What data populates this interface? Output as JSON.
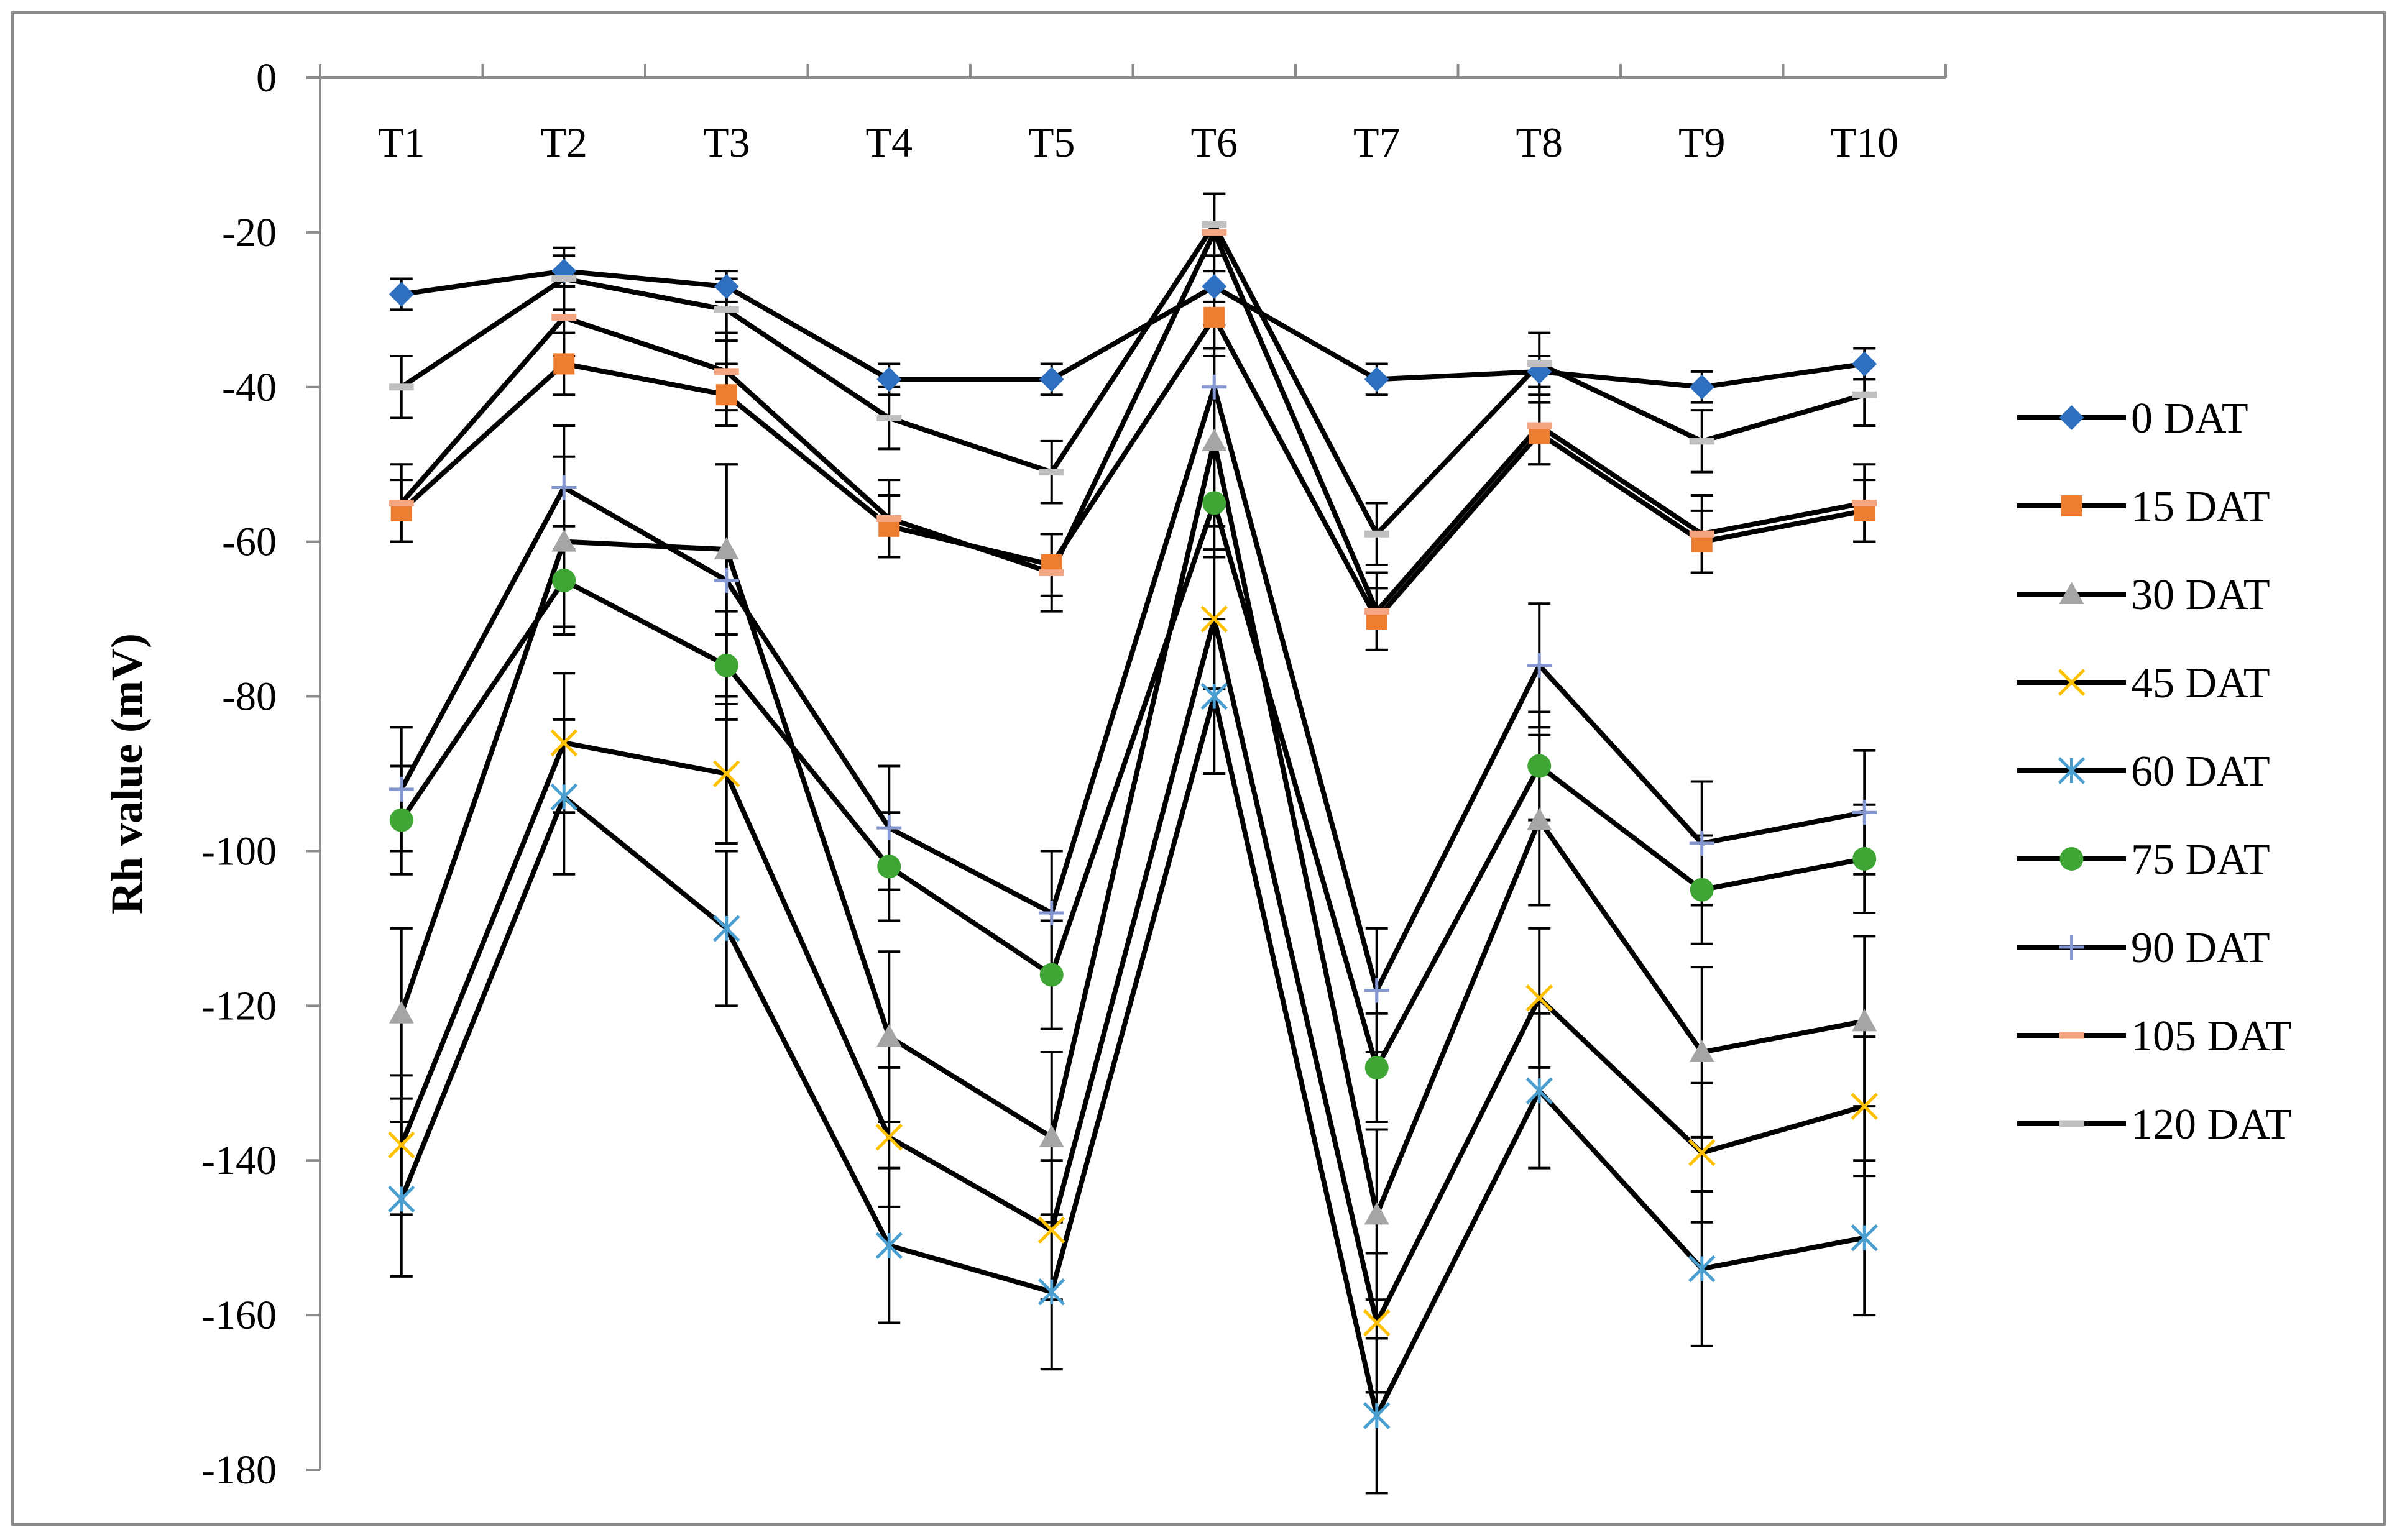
{
  "chart_data": {
    "type": "line",
    "title": "",
    "xlabel": "",
    "ylabel": "Rh value (mV)",
    "ylim": [
      -180,
      0
    ],
    "yticks": [
      0,
      -20,
      -40,
      -60,
      -80,
      -100,
      -120,
      -140,
      -160,
      -180
    ],
    "ytick_labels": [
      "0",
      "-20",
      "-40",
      "-60",
      "-80",
      "-100",
      "-120",
      "-140",
      "-160",
      "-180"
    ],
    "categories": [
      "T1",
      "T2",
      "T3",
      "T4",
      "T5",
      "T6",
      "T7",
      "T8",
      "T9",
      "T10"
    ],
    "legend_position": "right",
    "grid": false,
    "series": [
      {
        "name": "0 DAT",
        "marker": "diamond",
        "color": "#2E6FC0",
        "values": [
          -28,
          -25,
          -27,
          -39,
          -39,
          -27,
          -39,
          -38,
          -40,
          -37
        ],
        "errors": [
          2,
          2,
          2,
          2,
          2,
          2,
          2,
          2,
          2,
          2
        ]
      },
      {
        "name": "15 DAT",
        "marker": "square",
        "color": "#ED7D31",
        "values": [
          -56,
          -37,
          -41,
          -58,
          -63,
          -31,
          -70,
          -46,
          -60,
          -56
        ],
        "errors": [
          4,
          4,
          4,
          4,
          4,
          4,
          4,
          4,
          4,
          4
        ]
      },
      {
        "name": "30 DAT",
        "marker": "triangle",
        "color": "#A5A5A5",
        "values": [
          -121,
          -60,
          -61,
          -124,
          -137,
          -47,
          -147,
          -96,
          -126,
          -122
        ],
        "errors": [
          11,
          11,
          11,
          11,
          11,
          11,
          11,
          11,
          11,
          11
        ]
      },
      {
        "name": "45 DAT",
        "marker": "x",
        "color": "#FFC000",
        "values": [
          -138,
          -86,
          -90,
          -137,
          -149,
          -70,
          -161,
          -119,
          -139,
          -133
        ],
        "errors": [
          9,
          9,
          9,
          9,
          9,
          9,
          9,
          9,
          9,
          9
        ]
      },
      {
        "name": "60 DAT",
        "marker": "star",
        "color": "#4A9FD0",
        "values": [
          -145,
          -93,
          -110,
          -151,
          -157,
          -80,
          -173,
          -131,
          -154,
          -150
        ],
        "errors": [
          10,
          10,
          10,
          10,
          10,
          10,
          10,
          10,
          10,
          10
        ]
      },
      {
        "name": "75 DAT",
        "marker": "circle",
        "color": "#3FA535",
        "values": [
          -96,
          -65,
          -76,
          -102,
          -116,
          -55,
          -128,
          -89,
          -105,
          -101
        ],
        "errors": [
          7,
          7,
          7,
          7,
          7,
          7,
          7,
          7,
          7,
          7
        ]
      },
      {
        "name": "90 DAT",
        "marker": "plus",
        "color": "#8497D0",
        "values": [
          -92,
          -53,
          -65,
          -97,
          -108,
          -40,
          -118,
          -76,
          -99,
          -95
        ],
        "errors": [
          8,
          8,
          15,
          8,
          8,
          8,
          8,
          8,
          8,
          8
        ]
      },
      {
        "name": "105 DAT",
        "marker": "dash",
        "color": "#F4A582",
        "values": [
          -55,
          -31,
          -38,
          -57,
          -64,
          -20,
          -69,
          -45,
          -59,
          -55
        ],
        "errors": [
          5,
          5,
          5,
          5,
          5,
          5,
          5,
          5,
          5,
          5
        ]
      },
      {
        "name": "120 DAT",
        "marker": "dash",
        "color": "#C0C0C0",
        "values": [
          -40,
          -26,
          -30,
          -44,
          -51,
          -19,
          -59,
          -37,
          -47,
          -41
        ],
        "errors": [
          4,
          4,
          4,
          4,
          4,
          4,
          4,
          4,
          4,
          4
        ]
      }
    ]
  }
}
